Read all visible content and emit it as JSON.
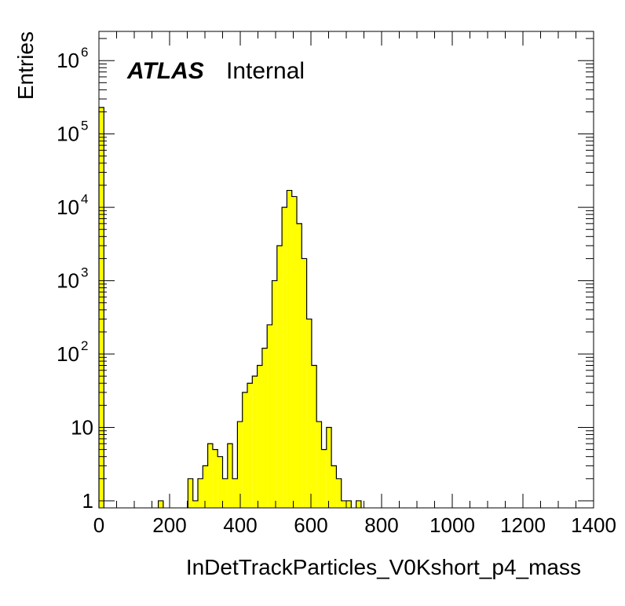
{
  "chart_data": {
    "type": "bar",
    "histogram": true,
    "title": "",
    "xlabel": "InDetTrackParticles_V0Kshort_p4_mass",
    "ylabel": "Entries",
    "xlim": [
      0,
      1400
    ],
    "ylim": [
      0.8,
      2500000
    ],
    "y_scale": "log",
    "bin_width": 14,
    "x_ticks": [
      "0",
      "200",
      "400",
      "600",
      "800",
      "1000",
      "1200",
      "1400"
    ],
    "y_ticks": [
      {
        "base": "1",
        "exp": ""
      },
      {
        "base": "10",
        "exp": ""
      },
      {
        "base": "10",
        "exp": "2"
      },
      {
        "base": "10",
        "exp": "3"
      },
      {
        "base": "10",
        "exp": "4"
      },
      {
        "base": "10",
        "exp": "5"
      },
      {
        "base": "10",
        "exp": "6"
      }
    ],
    "fill_color": "#ffff00",
    "line_color": "#000000",
    "grid": false,
    "bins": [
      {
        "x": 0,
        "count": 230000
      },
      {
        "x": 168,
        "count": 1
      },
      {
        "x": 252,
        "count": 2
      },
      {
        "x": 266,
        "count": 1
      },
      {
        "x": 280,
        "count": 2
      },
      {
        "x": 294,
        "count": 3
      },
      {
        "x": 308,
        "count": 6
      },
      {
        "x": 322,
        "count": 5
      },
      {
        "x": 336,
        "count": 4
      },
      {
        "x": 350,
        "count": 2
      },
      {
        "x": 364,
        "count": 6
      },
      {
        "x": 378,
        "count": 2
      },
      {
        "x": 392,
        "count": 12
      },
      {
        "x": 406,
        "count": 30
      },
      {
        "x": 420,
        "count": 40
      },
      {
        "x": 434,
        "count": 50
      },
      {
        "x": 448,
        "count": 70
      },
      {
        "x": 462,
        "count": 120
      },
      {
        "x": 476,
        "count": 250
      },
      {
        "x": 490,
        "count": 1000
      },
      {
        "x": 504,
        "count": 3000
      },
      {
        "x": 518,
        "count": 10000
      },
      {
        "x": 532,
        "count": 17000
      },
      {
        "x": 546,
        "count": 14000
      },
      {
        "x": 560,
        "count": 6000
      },
      {
        "x": 574,
        "count": 2000
      },
      {
        "x": 588,
        "count": 300
      },
      {
        "x": 602,
        "count": 70
      },
      {
        "x": 616,
        "count": 12
      },
      {
        "x": 630,
        "count": 5
      },
      {
        "x": 644,
        "count": 10
      },
      {
        "x": 658,
        "count": 3
      },
      {
        "x": 672,
        "count": 2
      },
      {
        "x": 686,
        "count": 1
      },
      {
        "x": 700,
        "count": 1
      },
      {
        "x": 728,
        "count": 1
      }
    ]
  },
  "labels": {
    "experiment": "ATLAS",
    "status": "Internal"
  }
}
